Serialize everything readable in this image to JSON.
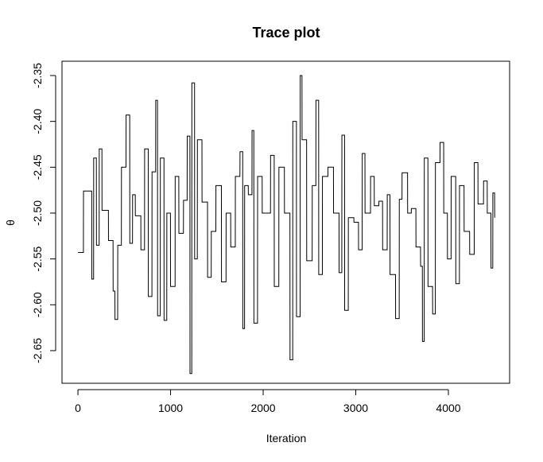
{
  "chart_data": {
    "type": "line",
    "title": "Trace plot",
    "x_label": "Iteration",
    "y_label": "θ",
    "xlim": [
      -172,
      4661
    ],
    "ylim": [
      -2.6856,
      -2.3344
    ],
    "xticks": [
      0,
      1000,
      2000,
      3000,
      4000
    ],
    "yticks": [
      -2.35,
      {
        "value": -2.4,
        "label": "-2.40"
      },
      -2.45,
      {
        "value": -2.5,
        "label": "-2.50"
      },
      -2.55,
      {
        "value": -2.6,
        "label": "-2.60"
      },
      -2.65
    ],
    "color": "#000000",
    "x": [
      1,
      59,
      60,
      149,
      150,
      169,
      170,
      199,
      200,
      229,
      230,
      259,
      260,
      329,
      330,
      379,
      380,
      399,
      400,
      429,
      430,
      469,
      470,
      519,
      520,
      559,
      560,
      589,
      590,
      619,
      620,
      679,
      680,
      719,
      720,
      759,
      760,
      799,
      800,
      839,
      840,
      859,
      860,
      889,
      890,
      929,
      930,
      959,
      960,
      999,
      1000,
      1049,
      1050,
      1089,
      1090,
      1139,
      1140,
      1179,
      1180,
      1209,
      1210,
      1229,
      1230,
      1259,
      1260,
      1289,
      1290,
      1339,
      1340,
      1399,
      1400,
      1439,
      1440,
      1489,
      1490,
      1549,
      1550,
      1599,
      1600,
      1649,
      1650,
      1699,
      1700,
      1749,
      1750,
      1779,
      1780,
      1799,
      1800,
      1839,
      1840,
      1879,
      1880,
      1899,
      1900,
      1939,
      1940,
      1989,
      1990,
      2079,
      2080,
      2119,
      2120,
      2169,
      2170,
      2229,
      2230,
      2289,
      2290,
      2319,
      2320,
      2359,
      2360,
      2399,
      2400,
      2419,
      2420,
      2469,
      2470,
      2529,
      2530,
      2569,
      2570,
      2599,
      2600,
      2639,
      2640,
      2699,
      2700,
      2759,
      2760,
      2819,
      2820,
      2849,
      2850,
      2879,
      2880,
      2919,
      2920,
      2979,
      2980,
      3029,
      3030,
      3069,
      3070,
      3099,
      3100,
      3159,
      3160,
      3199,
      3200,
      3249,
      3250,
      3289,
      3290,
      3339,
      3340,
      3369,
      3370,
      3429,
      3430,
      3469,
      3470,
      3499,
      3500,
      3559,
      3560,
      3599,
      3600,
      3649,
      3650,
      3699,
      3700,
      3719,
      3720,
      3739,
      3740,
      3779,
      3780,
      3829,
      3830,
      3859,
      3860,
      3909,
      3910,
      3949,
      3950,
      3989,
      3990,
      4029,
      4030,
      4079,
      4080,
      4119,
      4120,
      4169,
      4170,
      4229,
      4230,
      4279,
      4280,
      4319,
      4320,
      4379,
      4380,
      4419,
      4420,
      4459,
      4460,
      4479,
      4480,
      4499,
      4500
    ],
    "values": [
      -2.543,
      -2.543,
      -2.476,
      -2.476,
      -2.572,
      -2.572,
      -2.44,
      -2.44,
      -2.535,
      -2.535,
      -2.43,
      -2.43,
      -2.497,
      -2.497,
      -2.53,
      -2.53,
      -2.585,
      -2.585,
      -2.616,
      -2.616,
      -2.535,
      -2.535,
      -2.45,
      -2.45,
      -2.393,
      -2.393,
      -2.533,
      -2.533,
      -2.48,
      -2.48,
      -2.503,
      -2.503,
      -2.54,
      -2.54,
      -2.43,
      -2.43,
      -2.591,
      -2.591,
      -2.455,
      -2.455,
      -2.377,
      -2.377,
      -2.612,
      -2.612,
      -2.44,
      -2.44,
      -2.617,
      -2.617,
      -2.5,
      -2.5,
      -2.58,
      -2.58,
      -2.46,
      -2.46,
      -2.522,
      -2.522,
      -2.486,
      -2.486,
      -2.416,
      -2.416,
      -2.675,
      -2.675,
      -2.358,
      -2.358,
      -2.55,
      -2.55,
      -2.42,
      -2.42,
      -2.488,
      -2.488,
      -2.57,
      -2.57,
      -2.52,
      -2.52,
      -2.47,
      -2.47,
      -2.575,
      -2.575,
      -2.5,
      -2.5,
      -2.537,
      -2.537,
      -2.46,
      -2.46,
      -2.433,
      -2.433,
      -2.626,
      -2.626,
      -2.47,
      -2.47,
      -2.48,
      -2.48,
      -2.41,
      -2.41,
      -2.62,
      -2.62,
      -2.46,
      -2.46,
      -2.5,
      -2.5,
      -2.437,
      -2.437,
      -2.58,
      -2.58,
      -2.45,
      -2.45,
      -2.5,
      -2.5,
      -2.66,
      -2.66,
      -2.4,
      -2.4,
      -2.613,
      -2.613,
      -2.35,
      -2.35,
      -2.42,
      -2.42,
      -2.552,
      -2.552,
      -2.47,
      -2.47,
      -2.377,
      -2.377,
      -2.567,
      -2.567,
      -2.46,
      -2.46,
      -2.45,
      -2.45,
      -2.5,
      -2.5,
      -2.565,
      -2.565,
      -2.415,
      -2.415,
      -2.606,
      -2.606,
      -2.505,
      -2.505,
      -2.51,
      -2.51,
      -2.54,
      -2.54,
      -2.435,
      -2.435,
      -2.5,
      -2.5,
      -2.46,
      -2.46,
      -2.492,
      -2.492,
      -2.487,
      -2.487,
      -2.54,
      -2.54,
      -2.48,
      -2.48,
      -2.567,
      -2.567,
      -2.615,
      -2.615,
      -2.485,
      -2.485,
      -2.456,
      -2.456,
      -2.5,
      -2.5,
      -2.495,
      -2.495,
      -2.537,
      -2.537,
      -2.558,
      -2.558,
      -2.64,
      -2.64,
      -2.44,
      -2.44,
      -2.58,
      -2.58,
      -2.61,
      -2.61,
      -2.445,
      -2.445,
      -2.423,
      -2.423,
      -2.5,
      -2.5,
      -2.55,
      -2.55,
      -2.46,
      -2.46,
      -2.577,
      -2.577,
      -2.47,
      -2.47,
      -2.52,
      -2.52,
      -2.545,
      -2.545,
      -2.445,
      -2.445,
      -2.49,
      -2.49,
      -2.465,
      -2.465,
      -2.5,
      -2.5,
      -2.56,
      -2.56,
      -2.478,
      -2.478,
      -2.505
    ]
  }
}
